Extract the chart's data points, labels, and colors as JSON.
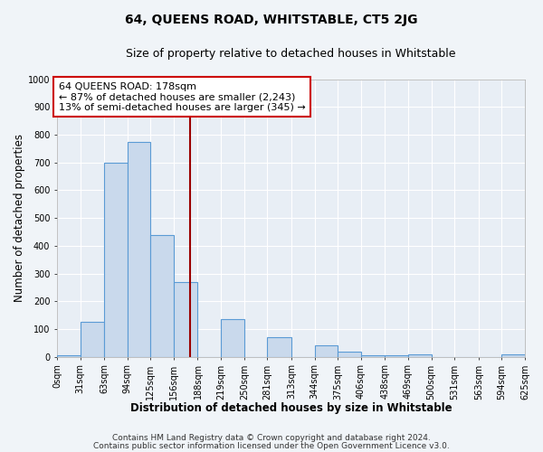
{
  "title": "64, QUEENS ROAD, WHITSTABLE, CT5 2JG",
  "subtitle": "Size of property relative to detached houses in Whitstable",
  "xlabel": "Distribution of detached houses by size in Whitstable",
  "ylabel": "Number of detached properties",
  "footer_line1": "Contains HM Land Registry data © Crown copyright and database right 2024.",
  "footer_line2": "Contains public sector information licensed under the Open Government Licence v3.0.",
  "bin_edges": [
    0,
    31,
    63,
    94,
    125,
    156,
    188,
    219,
    250,
    281,
    313,
    344,
    375,
    406,
    438,
    469,
    500,
    531,
    563,
    594,
    625
  ],
  "bin_labels": [
    "0sqm",
    "31sqm",
    "63sqm",
    "94sqm",
    "125sqm",
    "156sqm",
    "188sqm",
    "219sqm",
    "250sqm",
    "281sqm",
    "313sqm",
    "344sqm",
    "375sqm",
    "406sqm",
    "438sqm",
    "469sqm",
    "500sqm",
    "531sqm",
    "563sqm",
    "594sqm",
    "625sqm"
  ],
  "bar_heights": [
    5,
    125,
    700,
    775,
    440,
    270,
    0,
    135,
    0,
    70,
    0,
    40,
    20,
    5,
    5,
    10,
    0,
    0,
    0,
    10
  ],
  "bar_color": "#c9d9ec",
  "bar_edge_color": "#5b9bd5",
  "vline_x": 178,
  "vline_color": "#9b0000",
  "ann_line1": "64 QUEENS ROAD: 178sqm",
  "ann_line2": "← 87% of detached houses are smaller (2,243)",
  "ann_line3": "13% of semi-detached houses are larger (345) →",
  "annotation_box_color": "#cc0000",
  "annotation_box_bg": "#ffffff",
  "ylim": [
    0,
    1000
  ],
  "yticks": [
    0,
    100,
    200,
    300,
    400,
    500,
    600,
    700,
    800,
    900,
    1000
  ],
  "figure_bg_color": "#f0f4f8",
  "plot_bg_color": "#e8eef5",
  "grid_color": "#ffffff",
  "title_fontsize": 10,
  "subtitle_fontsize": 9,
  "axis_label_fontsize": 8.5,
  "tick_fontsize": 7,
  "annotation_fontsize": 8,
  "footer_fontsize": 6.5
}
